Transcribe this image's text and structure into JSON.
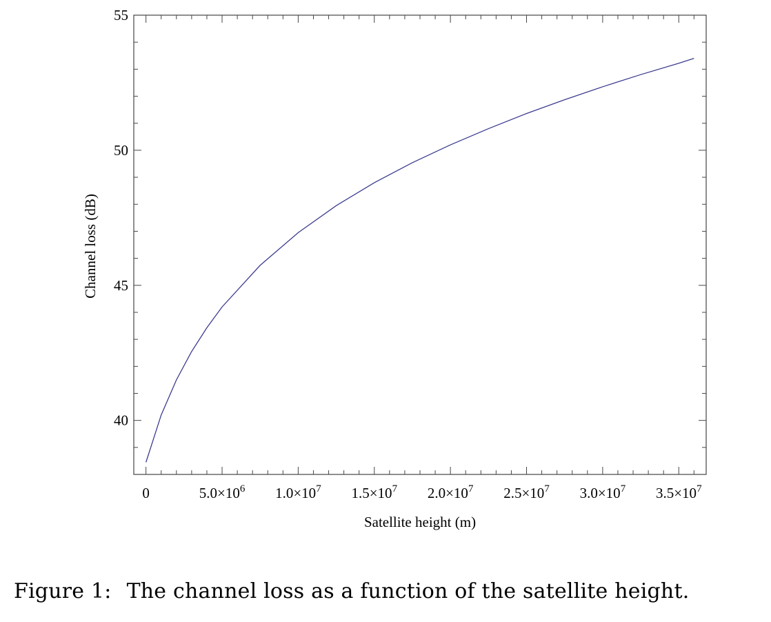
{
  "chart_data": {
    "type": "line",
    "title": "",
    "xlabel": "Satellite height (m)",
    "ylabel": "Channel loss (dB)",
    "xlim": [
      -800000,
      36800000
    ],
    "ylim": [
      38,
      55
    ],
    "x_ticks": [
      {
        "value": 0,
        "mantissa": "0",
        "exp": ""
      },
      {
        "value": 5000000,
        "mantissa": "5.0×10",
        "exp": "6"
      },
      {
        "value": 10000000,
        "mantissa": "1.0×10",
        "exp": "7"
      },
      {
        "value": 15000000,
        "mantissa": "1.5×10",
        "exp": "7"
      },
      {
        "value": 20000000,
        "mantissa": "2.0×10",
        "exp": "7"
      },
      {
        "value": 25000000,
        "mantissa": "2.5×10",
        "exp": "7"
      },
      {
        "value": 30000000,
        "mantissa": "3.0×10",
        "exp": "7"
      },
      {
        "value": 35000000,
        "mantissa": "3.5×10",
        "exp": "7"
      }
    ],
    "y_ticks": [
      {
        "value": 40,
        "label": "40"
      },
      {
        "value": 45,
        "label": "45"
      },
      {
        "value": 50,
        "label": "50"
      },
      {
        "value": 55,
        "label": "55"
      }
    ],
    "grid": false,
    "series": [
      {
        "color": "#3b3b8f",
        "x": [
          0,
          1000000,
          2000000,
          3000000,
          4000000,
          5000000,
          7500000,
          10000000,
          12500000,
          15000000,
          17500000,
          20000000,
          22500000,
          25000000,
          27500000,
          30000000,
          32500000,
          35000000,
          36000000
        ],
        "y": [
          38.45,
          40.2,
          41.5,
          42.55,
          43.43,
          44.2,
          45.74,
          46.95,
          47.95,
          48.8,
          49.54,
          50.2,
          50.8,
          51.36,
          51.87,
          52.35,
          52.8,
          53.22,
          53.4
        ]
      }
    ]
  },
  "caption": {
    "number": "Figure 1:",
    "text": "The channel loss as a function of the satellite height."
  }
}
